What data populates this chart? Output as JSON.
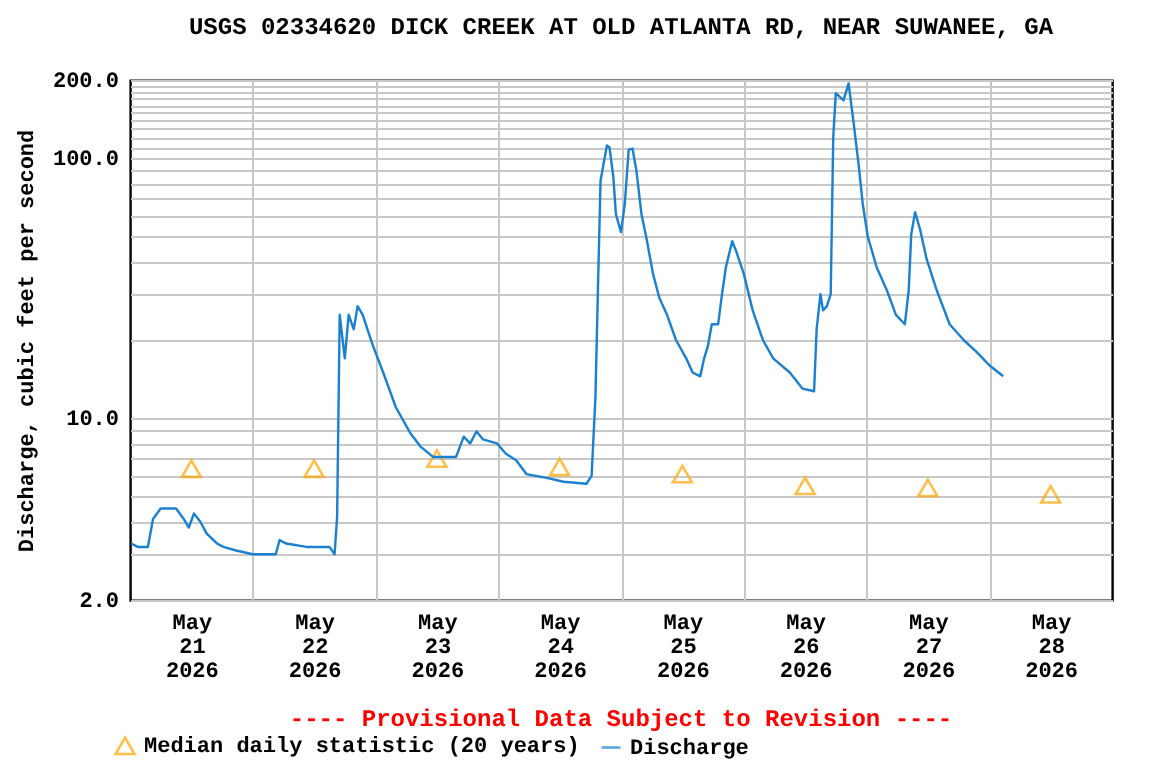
{
  "chart_data": {
    "type": "line",
    "title": "USGS 02334620 DICK CREEK AT OLD ATLANTA RD, NEAR SUWANEE, GA",
    "ylabel": "Discharge, cubic feet per second",
    "log": "y",
    "grid": true,
    "legend": "bottom",
    "annotations": [
      "---- Provisional Data Subject to Revision ----"
    ],
    "xlim": [
      "2026-05-21T00:00",
      "2026-05-29T00:00"
    ],
    "xticks": [
      {
        "value": "2026-05-21T12:00",
        "label": "May 21 2026"
      },
      {
        "value": "2026-05-22T00:00",
        "label": null
      },
      {
        "value": "2026-05-22T12:00",
        "label": "May 22 2026"
      },
      {
        "value": "2026-05-23T00:00",
        "label": null
      },
      {
        "value": "2026-05-23T12:00",
        "label": "May 23 2026"
      },
      {
        "value": "2026-05-24T00:00",
        "label": null
      },
      {
        "value": "2026-05-24T12:00",
        "label": "May 24 2026"
      },
      {
        "value": "2026-05-25T00:00",
        "label": null
      },
      {
        "value": "2026-05-25T12:00",
        "label": "May 25 2026"
      },
      {
        "value": "2026-05-26T00:00",
        "label": null
      },
      {
        "value": "2026-05-26T12:00",
        "label": "May 26 2026"
      },
      {
        "value": "2026-05-27T00:00",
        "label": null
      },
      {
        "value": "2026-05-27T12:00",
        "label": "May 27 2026"
      },
      {
        "value": "2026-05-28T00:00",
        "label": null
      },
      {
        "value": "2026-05-28T12:00",
        "label": "May 28 2026"
      }
    ],
    "ylim": [
      2,
      200
    ],
    "yticks": [
      {
        "value": 2,
        "label": "2.0"
      },
      {
        "value": 3,
        "label": null
      },
      {
        "value": 4,
        "label": null
      },
      {
        "value": 5,
        "label": null
      },
      {
        "value": 6,
        "label": null
      },
      {
        "value": 7,
        "label": null
      },
      {
        "value": 8,
        "label": null
      },
      {
        "value": 9,
        "label": null
      },
      {
        "value": 10,
        "label": "10.0"
      },
      {
        "value": 20,
        "label": null
      },
      {
        "value": 30,
        "label": null
      },
      {
        "value": 40,
        "label": null
      },
      {
        "value": 50,
        "label": null
      },
      {
        "value": 60,
        "label": null
      },
      {
        "value": 70,
        "label": null
      },
      {
        "value": 80,
        "label": null
      },
      {
        "value": 90,
        "label": null
      },
      {
        "value": 100,
        "label": "100.0"
      },
      {
        "value": 110,
        "label": null
      },
      {
        "value": 120,
        "label": null
      },
      {
        "value": 130,
        "label": null
      },
      {
        "value": 140,
        "label": null
      },
      {
        "value": 150,
        "label": null
      },
      {
        "value": 160,
        "label": null
      },
      {
        "value": 170,
        "label": null
      },
      {
        "value": 180,
        "label": null
      },
      {
        "value": 190,
        "label": null
      },
      {
        "value": 200,
        "label": "200.0"
      }
    ],
    "series": [
      {
        "name": "Median daily statistic (20 years)",
        "type": "scatter",
        "marker": "triangle",
        "color": "#ffa500",
        "x": [
          "2026-05-21T12:00",
          "2026-05-22T12:00",
          "2026-05-23T12:00",
          "2026-05-24T12:00",
          "2026-05-25T12:00",
          "2026-05-26T12:00",
          "2026-05-27T12:00",
          "2026-05-28T12:00"
        ],
        "values": [
          6.4,
          6.4,
          7.0,
          6.5,
          6.1,
          5.5,
          5.4,
          5.1
        ]
      },
      {
        "name": "Discharge",
        "type": "line",
        "marker": "none",
        "color": "#1a80d0",
        "x": [
          "2026-05-21T00:15",
          "2026-05-21T01:30",
          "2026-05-21T03:30",
          "2026-05-21T04:30",
          "2026-05-21T06:00",
          "2026-05-21T09:00",
          "2026-05-21T10:30",
          "2026-05-21T11:30",
          "2026-05-21T12:30",
          "2026-05-21T13:45",
          "2026-05-21T15:00",
          "2026-05-21T17:00",
          "2026-05-21T18:15",
          "2026-05-21T20:45",
          "2026-05-22T00:00",
          "2026-05-22T04:30",
          "2026-05-22T05:15",
          "2026-05-22T06:30",
          "2026-05-22T10:30",
          "2026-05-22T15:00",
          "2026-05-22T16:00",
          "2026-05-22T16:30",
          "2026-05-22T17:00",
          "2026-05-22T18:00",
          "2026-05-22T18:45",
          "2026-05-22T19:45",
          "2026-05-22T20:30",
          "2026-05-22T21:30",
          "2026-05-22T23:30",
          "2026-05-23T01:30",
          "2026-05-23T04:00",
          "2026-05-23T06:45",
          "2026-05-23T08:45",
          "2026-05-23T11:15",
          "2026-05-23T15:45",
          "2026-05-23T17:15",
          "2026-05-23T18:30",
          "2026-05-23T19:45",
          "2026-05-23T21:00",
          "2026-05-23T23:45",
          "2026-05-24T01:30",
          "2026-05-24T03:30",
          "2026-05-24T05:30",
          "2026-05-24T09:30",
          "2026-05-24T12:45",
          "2026-05-24T17:15",
          "2026-05-24T18:15",
          "2026-05-24T19:00",
          "2026-05-24T19:30",
          "2026-05-24T20:00",
          "2026-05-24T20:30",
          "2026-05-24T21:15",
          "2026-05-24T21:45",
          "2026-05-24T22:30",
          "2026-05-24T23:00",
          "2026-05-25T00:00",
          "2026-05-25T00:45",
          "2026-05-25T01:30",
          "2026-05-25T02:15",
          "2026-05-25T03:00",
          "2026-05-25T04:00",
          "2026-05-25T05:00",
          "2026-05-25T06:15",
          "2026-05-25T07:30",
          "2026-05-25T09:00",
          "2026-05-25T10:45",
          "2026-05-25T12:45",
          "2026-05-25T14:00",
          "2026-05-25T15:30",
          "2026-05-25T16:15",
          "2026-05-25T17:00",
          "2026-05-25T17:45",
          "2026-05-25T19:00",
          "2026-05-25T19:45",
          "2026-05-25T20:30",
          "2026-05-25T21:45",
          "2026-05-25T22:30",
          "2026-05-26T00:00",
          "2026-05-26T01:45",
          "2026-05-26T03:45",
          "2026-05-26T05:45",
          "2026-05-26T09:00",
          "2026-05-26T11:30",
          "2026-05-26T13:45",
          "2026-05-26T14:15",
          "2026-05-26T15:00",
          "2026-05-26T15:30",
          "2026-05-26T16:15",
          "2026-05-26T17:00",
          "2026-05-26T17:30",
          "2026-05-26T18:00",
          "2026-05-26T19:30",
          "2026-05-26T20:30",
          "2026-05-26T21:30",
          "2026-05-26T22:30",
          "2026-05-26T23:15",
          "2026-05-27T00:15",
          "2026-05-27T02:00",
          "2026-05-27T04:00",
          "2026-05-27T05:45",
          "2026-05-27T07:30",
          "2026-05-27T08:15",
          "2026-05-27T08:45",
          "2026-05-27T09:30",
          "2026-05-27T10:30",
          "2026-05-27T11:45",
          "2026-05-27T13:45",
          "2026-05-27T16:15",
          "2026-05-27T19:00",
          "2026-05-27T21:30",
          "2026-05-28T00:00",
          "2026-05-28T02:45"
        ],
        "values": [
          3.3,
          3.2,
          3.2,
          4.1,
          4.5,
          4.5,
          4.1,
          3.8,
          4.3,
          4.0,
          3.6,
          3.3,
          3.2,
          3.1,
          3.0,
          3.0,
          3.4,
          3.3,
          3.2,
          3.2,
          3.0,
          4.2,
          25,
          17,
          25,
          22,
          27,
          25,
          19,
          15,
          11,
          8.8,
          7.8,
          7.1,
          7.1,
          8.5,
          8.0,
          8.9,
          8.3,
          8.0,
          7.3,
          6.9,
          6.1,
          5.9,
          5.7,
          5.6,
          6.0,
          12,
          32,
          82,
          93,
          112,
          110,
          85,
          61,
          52,
          67,
          108,
          109,
          90,
          61,
          49,
          36,
          29,
          25,
          20,
          17,
          15,
          14.5,
          17,
          19,
          23,
          23,
          30,
          38,
          48,
          44,
          36,
          26,
          20,
          17,
          15,
          13,
          12.7,
          22,
          30,
          26,
          27,
          30,
          121,
          178,
          167,
          194,
          136,
          93,
          67,
          50,
          38,
          31,
          25,
          23,
          31,
          51,
          62,
          53,
          41,
          31,
          23,
          20,
          18,
          16,
          14.5
        ]
      }
    ]
  }
}
